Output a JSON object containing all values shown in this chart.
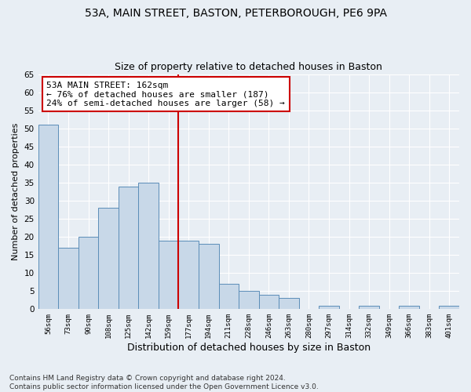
{
  "title1": "53A, MAIN STREET, BASTON, PETERBOROUGH, PE6 9PA",
  "title2": "Size of property relative to detached houses in Baston",
  "xlabel": "Distribution of detached houses by size in Baston",
  "ylabel": "Number of detached properties",
  "categories": [
    "56sqm",
    "73sqm",
    "90sqm",
    "108sqm",
    "125sqm",
    "142sqm",
    "159sqm",
    "177sqm",
    "194sqm",
    "211sqm",
    "228sqm",
    "246sqm",
    "263sqm",
    "280sqm",
    "297sqm",
    "314sqm",
    "332sqm",
    "349sqm",
    "366sqm",
    "383sqm",
    "401sqm"
  ],
  "values": [
    51,
    17,
    20,
    28,
    34,
    35,
    19,
    19,
    18,
    7,
    5,
    4,
    3,
    0,
    1,
    0,
    1,
    0,
    1,
    0,
    1
  ],
  "bar_color": "#c8d8e8",
  "bar_edge_color": "#5b8db8",
  "vline_x": 6.5,
  "vline_color": "#cc0000",
  "annotation_line1": "53A MAIN STREET: 162sqm",
  "annotation_line2": "← 76% of detached houses are smaller (187)",
  "annotation_line3": "24% of semi-detached houses are larger (58) →",
  "annotation_box_color": "#ffffff",
  "annotation_box_edge_color": "#cc0000",
  "ylim": [
    0,
    65
  ],
  "yticks": [
    0,
    5,
    10,
    15,
    20,
    25,
    30,
    35,
    40,
    45,
    50,
    55,
    60,
    65
  ],
  "background_color": "#e8eef4",
  "grid_color": "#ffffff",
  "footer": "Contains HM Land Registry data © Crown copyright and database right 2024.\nContains public sector information licensed under the Open Government Licence v3.0.",
  "title1_fontsize": 10,
  "title2_fontsize": 9,
  "xlabel_fontsize": 9,
  "ylabel_fontsize": 8,
  "annotation_fontsize": 8,
  "footer_fontsize": 6.5
}
